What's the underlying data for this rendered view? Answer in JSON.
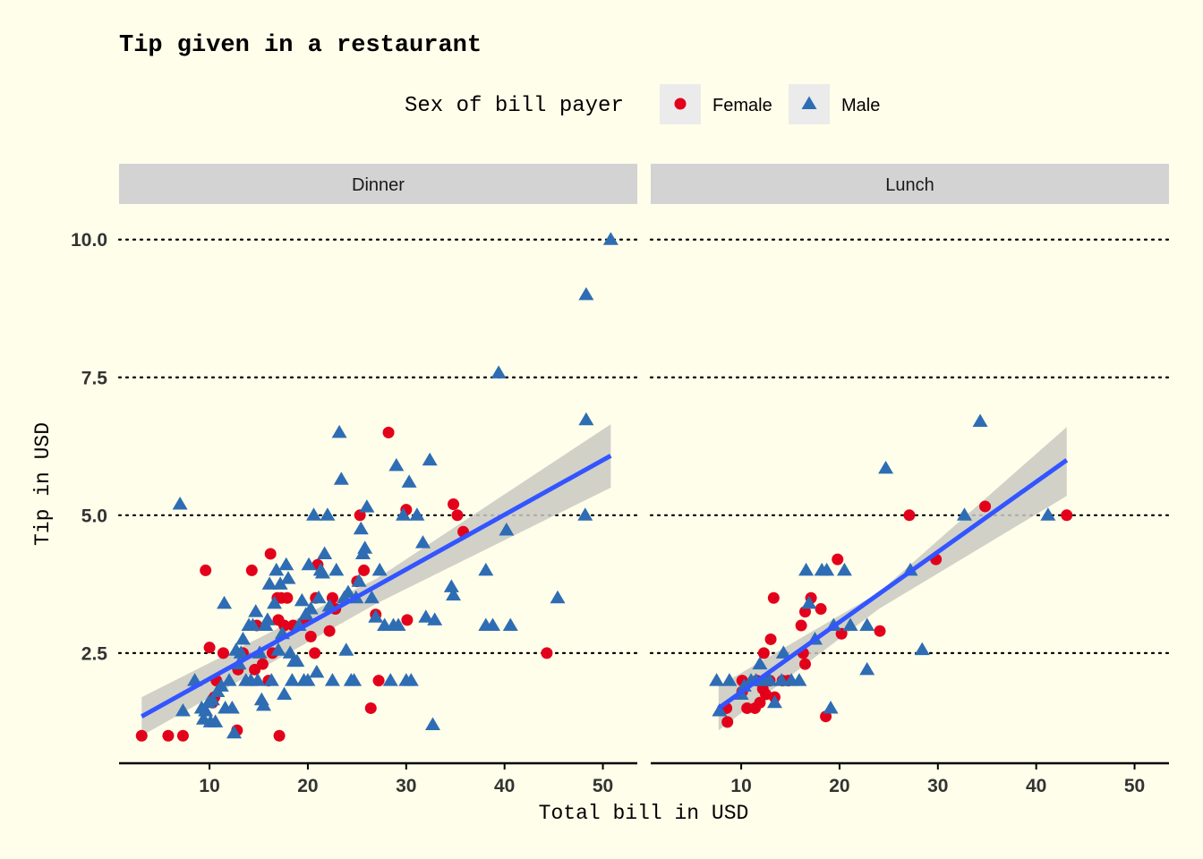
{
  "chart_data": {
    "type": "scatter",
    "title": "Tip given in a restaurant",
    "xlabel": "Total bill in USD",
    "ylabel": "Tip in USD",
    "xlim": [
      0.8,
      53.5
    ],
    "ylim": [
      0.55,
      10.45
    ],
    "x_ticks": [
      10,
      20,
      30,
      40,
      50
    ],
    "x_tick_labels": [
      "10",
      "20",
      "30",
      "40",
      "50"
    ],
    "y_ticks": [
      2.5,
      5.0,
      7.5,
      10.0
    ],
    "y_tick_labels": [
      "2.5",
      "5.0",
      "7.5",
      "10.0"
    ],
    "grid": "horizontal dotted major lines",
    "legend": {
      "title": "Sex of bill payer",
      "position": "top",
      "entries": [
        {
          "label": "Female",
          "shape": "circle",
          "color": "#e3001b"
        },
        {
          "label": "Male",
          "shape": "triangle",
          "color": "#2e6db4"
        }
      ]
    },
    "colors": {
      "female": "#e3001b",
      "male": "#2e6db4",
      "fit_line": "#3355ff",
      "ribbon": "#c9c9c2",
      "strip": "#d3d3d3",
      "background": "#fffeea"
    },
    "facets": [
      {
        "label": "Dinner",
        "fit": {
          "x": [
            3.1,
            50.8
          ],
          "y": [
            1.35,
            6.08
          ]
        },
        "ribbon": {
          "x": [
            3.1,
            27.0,
            50.8
          ],
          "lower": [
            1.0,
            3.4,
            5.5
          ],
          "upper": [
            1.7,
            3.85,
            6.65
          ]
        },
        "series": [
          {
            "name": "Female",
            "points": [
              [
                3.1,
                1.0
              ],
              [
                5.8,
                1.0
              ],
              [
                7.3,
                1.0
              ],
              [
                9.6,
                4.0
              ],
              [
                10.0,
                2.6
              ],
              [
                10.3,
                1.6
              ],
              [
                10.5,
                1.7
              ],
              [
                10.7,
                2.0
              ],
              [
                11.4,
                2.5
              ],
              [
                12.8,
                1.1
              ],
              [
                12.9,
                2.2
              ],
              [
                13.4,
                2.5
              ],
              [
                14.3,
                4.0
              ],
              [
                14.6,
                2.2
              ],
              [
                14.8,
                3.0
              ],
              [
                15.4,
                2.3
              ],
              [
                16.0,
                2.0
              ],
              [
                16.2,
                4.3
              ],
              [
                16.4,
                2.5
              ],
              [
                16.9,
                3.5
              ],
              [
                17.1,
                1.0
              ],
              [
                17.0,
                3.1
              ],
              [
                17.3,
                3.5
              ],
              [
                17.6,
                3.0
              ],
              [
                17.9,
                3.5
              ],
              [
                18.5,
                3.0
              ],
              [
                19.8,
                3.1
              ],
              [
                20.3,
                2.8
              ],
              [
                20.7,
                2.5
              ],
              [
                20.8,
                3.5
              ],
              [
                21.0,
                4.1
              ],
              [
                22.2,
                2.9
              ],
              [
                22.5,
                3.5
              ],
              [
                22.8,
                3.3
              ],
              [
                25.0,
                3.8
              ],
              [
                25.3,
                5.0
              ],
              [
                25.7,
                4.0
              ],
              [
                26.4,
                1.5
              ],
              [
                26.9,
                3.2
              ],
              [
                27.2,
                2.0
              ],
              [
                28.2,
                6.5
              ],
              [
                30.0,
                5.1
              ],
              [
                30.1,
                3.1
              ],
              [
                34.8,
                5.2
              ],
              [
                35.2,
                5.0
              ],
              [
                35.8,
                4.7
              ],
              [
                44.3,
                2.5
              ]
            ]
          },
          {
            "name": "Male",
            "points": [
              [
                7.3,
                1.45
              ],
              [
                7.0,
                5.2
              ],
              [
                8.5,
                2.0
              ],
              [
                9.2,
                1.5
              ],
              [
                9.4,
                1.3
              ],
              [
                9.6,
                1.45
              ],
              [
                9.9,
                1.6
              ],
              [
                10.1,
                1.25
              ],
              [
                10.3,
                1.65
              ],
              [
                10.6,
                1.25
              ],
              [
                10.8,
                1.8
              ],
              [
                11.2,
                1.9
              ],
              [
                11.5,
                3.4
              ],
              [
                11.6,
                1.5
              ],
              [
                12.0,
                2.0
              ],
              [
                12.3,
                1.5
              ],
              [
                12.5,
                1.05
              ],
              [
                12.7,
                2.55
              ],
              [
                13.0,
                2.3
              ],
              [
                13.2,
                2.5
              ],
              [
                13.4,
                2.75
              ],
              [
                13.7,
                2.0
              ],
              [
                14.0,
                3.0
              ],
              [
                14.2,
                2.0
              ],
              [
                14.4,
                3.0
              ],
              [
                14.7,
                3.25
              ],
              [
                14.9,
                2.0
              ],
              [
                15.1,
                2.5
              ],
              [
                15.3,
                1.65
              ],
              [
                15.5,
                1.55
              ],
              [
                15.7,
                3.0
              ],
              [
                15.9,
                3.1
              ],
              [
                16.1,
                3.75
              ],
              [
                16.3,
                2.0
              ],
              [
                16.6,
                3.4
              ],
              [
                16.8,
                4.0
              ],
              [
                17.0,
                2.55
              ],
              [
                17.2,
                3.75
              ],
              [
                17.4,
                2.85
              ],
              [
                17.6,
                1.75
              ],
              [
                17.8,
                4.1
              ],
              [
                18.0,
                3.85
              ],
              [
                18.2,
                2.5
              ],
              [
                18.4,
                2.0
              ],
              [
                18.6,
                2.35
              ],
              [
                18.9,
                2.35
              ],
              [
                19.1,
                3.0
              ],
              [
                19.4,
                3.45
              ],
              [
                19.6,
                2.0
              ],
              [
                19.8,
                3.2
              ],
              [
                20.0,
                2.0
              ],
              [
                20.1,
                4.1
              ],
              [
                20.3,
                3.3
              ],
              [
                20.6,
                5.0
              ],
              [
                20.9,
                2.15
              ],
              [
                21.1,
                3.5
              ],
              [
                21.3,
                4.0
              ],
              [
                21.5,
                3.95
              ],
              [
                21.7,
                4.3
              ],
              [
                22.0,
                5.0
              ],
              [
                22.2,
                3.35
              ],
              [
                22.5,
                2.0
              ],
              [
                22.9,
                4.0
              ],
              [
                23.2,
                6.5
              ],
              [
                23.4,
                5.65
              ],
              [
                23.7,
                3.5
              ],
              [
                23.9,
                2.55
              ],
              [
                24.1,
                3.6
              ],
              [
                24.4,
                2.0
              ],
              [
                24.7,
                2.0
              ],
              [
                24.9,
                3.5
              ],
              [
                25.2,
                3.8
              ],
              [
                25.4,
                4.75
              ],
              [
                25.6,
                4.3
              ],
              [
                25.8,
                4.4
              ],
              [
                26.0,
                5.15
              ],
              [
                26.5,
                3.5
              ],
              [
                26.9,
                3.15
              ],
              [
                27.3,
                4.0
              ],
              [
                27.8,
                3.0
              ],
              [
                28.4,
                2.0
              ],
              [
                28.7,
                3.0
              ],
              [
                29.0,
                5.9
              ],
              [
                29.2,
                3.0
              ],
              [
                29.7,
                5.0
              ],
              [
                30.0,
                2.0
              ],
              [
                30.3,
                5.6
              ],
              [
                30.5,
                2.0
              ],
              [
                31.1,
                5.0
              ],
              [
                31.7,
                4.5
              ],
              [
                32.0,
                3.15
              ],
              [
                32.4,
                6.0
              ],
              [
                32.7,
                1.2
              ],
              [
                32.9,
                3.1
              ],
              [
                34.6,
                3.7
              ],
              [
                34.8,
                3.55
              ],
              [
                38.1,
                4.0
              ],
              [
                38.1,
                3.0
              ],
              [
                38.8,
                3.0
              ],
              [
                39.4,
                7.58
              ],
              [
                40.2,
                4.73
              ],
              [
                40.6,
                3.0
              ],
              [
                45.4,
                3.5
              ],
              [
                48.2,
                5.0
              ],
              [
                48.3,
                6.73
              ],
              [
                48.3,
                9.0
              ],
              [
                50.8,
                10.0
              ]
            ]
          }
        ]
      },
      {
        "label": "Lunch",
        "fit": {
          "x": [
            7.7,
            43.1
          ],
          "y": [
            1.5,
            6.0
          ]
        },
        "ribbon": {
          "x": [
            7.7,
            24.0,
            43.1
          ],
          "lower": [
            1.1,
            3.3,
            5.35
          ],
          "upper": [
            1.9,
            3.6,
            6.6
          ]
        },
        "series": [
          {
            "name": "Female",
            "points": [
              [
                8.5,
                1.5
              ],
              [
                8.6,
                1.25
              ],
              [
                10.1,
                1.8
              ],
              [
                10.1,
                2.0
              ],
              [
                10.6,
                1.5
              ],
              [
                11.4,
                1.5
              ],
              [
                11.6,
                2.0
              ],
              [
                11.9,
                1.6
              ],
              [
                12.2,
                1.85
              ],
              [
                12.3,
                2.5
              ],
              [
                12.4,
                2.0
              ],
              [
                12.5,
                1.75
              ],
              [
                12.9,
                2.0
              ],
              [
                13.0,
                2.75
              ],
              [
                13.3,
                3.5
              ],
              [
                13.4,
                1.7
              ],
              [
                14.2,
                2.0
              ],
              [
                14.8,
                2.0
              ],
              [
                16.1,
                3.0
              ],
              [
                16.3,
                2.5
              ],
              [
                16.5,
                2.3
              ],
              [
                16.5,
                3.25
              ],
              [
                17.1,
                3.5
              ],
              [
                18.1,
                3.3
              ],
              [
                18.6,
                1.35
              ],
              [
                19.8,
                4.2
              ],
              [
                20.2,
                2.85
              ],
              [
                24.1,
                2.9
              ],
              [
                27.1,
                5.0
              ],
              [
                29.8,
                4.2
              ],
              [
                34.8,
                5.16
              ],
              [
                43.1,
                5.0
              ]
            ]
          },
          {
            "name": "Male",
            "points": [
              [
                7.5,
                2.0
              ],
              [
                7.8,
                1.45
              ],
              [
                8.8,
                2.0
              ],
              [
                10.0,
                1.75
              ],
              [
                10.3,
                1.9
              ],
              [
                11.0,
                2.0
              ],
              [
                11.5,
                2.0
              ],
              [
                11.9,
                2.3
              ],
              [
                12.4,
                2.0
              ],
              [
                12.9,
                2.0
              ],
              [
                13.4,
                1.6
              ],
              [
                14.1,
                2.0
              ],
              [
                14.3,
                2.5
              ],
              [
                15.1,
                2.0
              ],
              [
                15.9,
                2.0
              ],
              [
                16.6,
                4.0
              ],
              [
                16.9,
                3.4
              ],
              [
                17.5,
                2.75
              ],
              [
                18.2,
                4.0
              ],
              [
                18.7,
                4.0
              ],
              [
                19.1,
                1.5
              ],
              [
                19.4,
                3.0
              ],
              [
                20.5,
                4.0
              ],
              [
                21.1,
                3.0
              ],
              [
                22.8,
                3.0
              ],
              [
                22.8,
                2.2
              ],
              [
                24.7,
                5.85
              ],
              [
                27.2,
                4.0
              ],
              [
                28.4,
                2.56
              ],
              [
                32.7,
                5.0
              ],
              [
                34.3,
                6.7
              ],
              [
                41.2,
                5.0
              ]
            ]
          }
        ]
      }
    ]
  }
}
